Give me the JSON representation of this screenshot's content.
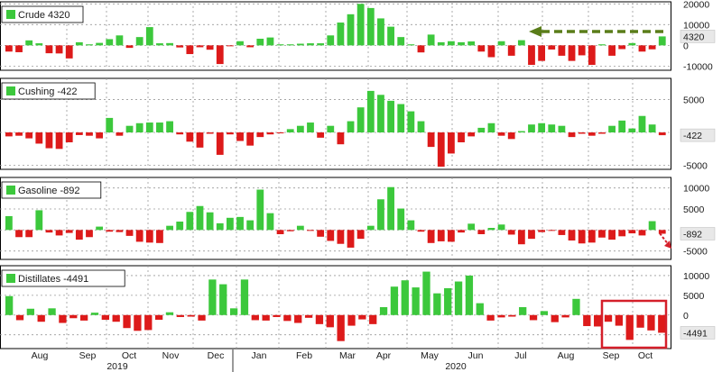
{
  "colors": {
    "positive": "#3cc83c",
    "negative": "#dd1a1a",
    "grid": "#9a9a9a",
    "text": "#1a1a1a",
    "label_box": "#ffffff",
    "last_value_label": "#e8e8e8",
    "arrow": "#5a7d1a",
    "highlight_box": "#d41f2a",
    "red_arrow": "#d41f2a"
  },
  "x_axis": {
    "months": [
      "Aug",
      "Sep",
      "Oct",
      "Nov",
      "Dec",
      "Jan",
      "Feb",
      "Mar",
      "Apr",
      "May",
      "Jun",
      "Jul",
      "Aug",
      "Sep",
      "Oct"
    ],
    "years": [
      "2019",
      "2020"
    ]
  },
  "chart_data": [
    {
      "type": "bar",
      "title": "Crude 4320",
      "series_name": "Crude",
      "last_value": 4320,
      "last_value_label": "4320",
      "y_ticks": [
        20000,
        10000,
        0,
        -10000
      ],
      "y_tick_labels": [
        "20000",
        "10000",
        "0",
        "-10000"
      ],
      "ylim": [
        -12000,
        21000
      ],
      "values": [
        -3000,
        -3300,
        2400,
        1000,
        -3800,
        -3900,
        -6300,
        1500,
        500,
        1200,
        3000,
        4800,
        -1200,
        4000,
        8800,
        1000,
        1100,
        -1000,
        -4200,
        -900,
        -2100,
        -9000,
        -200,
        2000,
        -900,
        3200,
        3800,
        500,
        500,
        800,
        1000,
        1000,
        4800,
        11000,
        15000,
        20000,
        18000,
        13000,
        9000,
        4000,
        500,
        -3400,
        5200,
        1500,
        2000,
        1500,
        1900,
        -3000,
        -5700,
        2000,
        -5000,
        2500,
        -9400,
        -7500,
        -2000,
        -5000,
        -7500,
        -4800,
        -9400,
        500,
        -5000,
        -1800,
        1100,
        -3000,
        -1900,
        4320
      ]
    },
    {
      "type": "bar",
      "title": "Cushing -422",
      "series_name": "Cushing",
      "last_value": -422,
      "last_value_label": "-422",
      "y_ticks": [
        5000,
        0,
        -5000
      ],
      "y_tick_labels": [
        "5000",
        "",
        "-5000"
      ],
      "ylim": [
        -5600,
        8200
      ],
      "values": [
        -600,
        -500,
        -900,
        -1700,
        -2400,
        -2500,
        -1500,
        -400,
        -500,
        -900,
        2200,
        -500,
        1000,
        1400,
        1500,
        1500,
        1700,
        -300,
        -1400,
        -2300,
        -200,
        -3400,
        -300,
        -1300,
        -2000,
        -700,
        -300,
        -100,
        500,
        1000,
        1500,
        -800,
        1000,
        -1800,
        1700,
        3800,
        6300,
        5700,
        4800,
        4300,
        3200,
        1700,
        -2200,
        -5200,
        -3200,
        -1500,
        -600,
        700,
        1400,
        -500,
        -1000,
        200,
        1200,
        1400,
        1200,
        1000,
        -700,
        -200,
        -500,
        -200,
        1000,
        1800,
        600,
        2500,
        1200,
        -422
      ]
    },
    {
      "type": "bar",
      "title": "Gasoline -892",
      "series_name": "Gasoline",
      "last_value": -892,
      "last_value_label": "-892",
      "y_ticks": [
        10000,
        5000,
        0,
        -5000
      ],
      "y_tick_labels": [
        "10000",
        "5000",
        "",
        "-5000"
      ],
      "ylim": [
        -7000,
        12500
      ],
      "values": [
        3300,
        -1700,
        -1700,
        4700,
        -600,
        -1300,
        -700,
        -2300,
        -1700,
        800,
        -400,
        -500,
        -1400,
        -2800,
        -3000,
        -3100,
        1000,
        2000,
        4300,
        5700,
        4200,
        1600,
        2900,
        3100,
        2300,
        9600,
        4000,
        -1000,
        -300,
        1000,
        -200,
        -1600,
        -2600,
        -3300,
        -4200,
        -2100,
        1000,
        7300,
        10200,
        5100,
        2300,
        -400,
        -3100,
        -2700,
        -2800,
        -600,
        1500,
        -1000,
        500,
        1300,
        -1100,
        -3400,
        -2100,
        -500,
        -200,
        -1200,
        -2500,
        -3200,
        -3000,
        -1800,
        -2300,
        -1500,
        -800,
        -1300,
        2100,
        -892
      ]
    },
    {
      "type": "bar",
      "title": "Distillates -4491",
      "series_name": "Distillates",
      "last_value": -4491,
      "last_value_label": "-4491",
      "y_ticks": [
        10000,
        5000,
        0,
        -5000
      ],
      "y_tick_labels": [
        "10000",
        "5000",
        "0",
        "-5000"
      ],
      "ylim": [
        -8500,
        12500
      ],
      "values": [
        4800,
        -1300,
        1600,
        -1700,
        1700,
        -2000,
        -800,
        -1400,
        600,
        -1200,
        -1700,
        -3300,
        -4000,
        -3800,
        -1200,
        700,
        -500,
        -400,
        -1400,
        9000,
        7800,
        1700,
        9000,
        -1300,
        -1400,
        -500,
        -1500,
        -2000,
        -700,
        -2300,
        -3100,
        -6600,
        -2700,
        -1100,
        -2300,
        2000,
        7200,
        8800,
        7000,
        11000,
        5500,
        6800,
        8500,
        10000,
        3000,
        -1400,
        -600,
        -400,
        2000,
        -1300,
        1000,
        -1800,
        -600,
        4100,
        -2800,
        -2900,
        -1700,
        -2700,
        -6300,
        -3200,
        -3900,
        -4491
      ]
    }
  ]
}
